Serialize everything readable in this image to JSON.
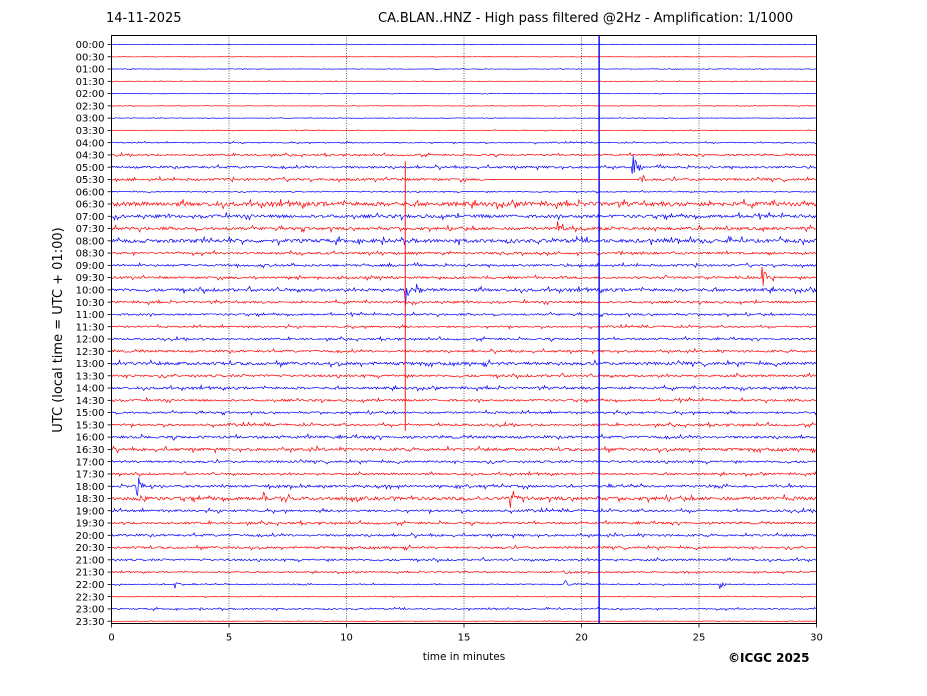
{
  "header": {
    "date": "14-11-2025",
    "title": "CA.BLAN..HNZ - High pass filtered @2Hz - Amplification: 1/1000"
  },
  "footer": {
    "copyright": "©ICGC 2025"
  },
  "chart_data": {
    "type": "line",
    "xlabel": "time in minutes",
    "ylabel": "UTC (local time = UTC + 01:00)",
    "xlim": [
      0,
      30
    ],
    "x_ticks": [
      0,
      5,
      10,
      15,
      20,
      25,
      30
    ],
    "grid": "vertical dotted lines at every 5 minutes",
    "row_colors": [
      "#0000ff",
      "#ff0000"
    ],
    "rows": [
      "00:00",
      "00:30",
      "01:00",
      "01:30",
      "02:00",
      "02:30",
      "03:00",
      "03:30",
      "04:00",
      "04:30",
      "05:00",
      "05:30",
      "06:00",
      "06:30",
      "07:00",
      "07:30",
      "08:00",
      "08:30",
      "09:00",
      "09:30",
      "10:00",
      "10:30",
      "11:00",
      "11:30",
      "12:00",
      "12:30",
      "13:00",
      "13:30",
      "14:00",
      "14:30",
      "15:00",
      "15:30",
      "16:00",
      "16:30",
      "17:00",
      "17:30",
      "18:00",
      "18:30",
      "19:00",
      "19:30",
      "20:00",
      "20:30",
      "21:00",
      "21:30",
      "22:00",
      "22:30",
      "23:00",
      "23:30"
    ],
    "row_noise_amplitude": [
      0.3,
      0.3,
      0.5,
      0.5,
      0.5,
      0.5,
      0.5,
      0.6,
      1.0,
      1.6,
      2.0,
      2.2,
      1.0,
      4.0,
      3.0,
      2.6,
      3.4,
      2.0,
      2.0,
      2.0,
      2.8,
      2.0,
      1.8,
      1.6,
      1.8,
      2.0,
      2.8,
      2.2,
      2.2,
      2.0,
      1.8,
      2.0,
      2.4,
      2.6,
      2.0,
      1.8,
      2.2,
      3.2,
      2.0,
      2.0,
      2.0,
      2.0,
      1.8,
      1.2,
      1.0,
      0.7,
      1.2,
      0.5
    ],
    "events": [
      {
        "row": "05:00",
        "minute": 22.2,
        "amplitude": 14
      },
      {
        "row": "05:30",
        "minute": 22.4,
        "amplitude": 12
      },
      {
        "row": "07:30",
        "minute": 19.0,
        "amplitude": 8
      },
      {
        "row": "09:30",
        "minute": 27.7,
        "amplitude": 16
      },
      {
        "row": "10:00",
        "minute": 12.5,
        "amplitude": 18
      },
      {
        "row": "10:00",
        "minute": 13.0,
        "amplitude": 6
      },
      {
        "row": "18:00",
        "minute": 1.1,
        "amplitude": 12
      },
      {
        "row": "18:30",
        "minute": 1.2,
        "amplitude": 8
      },
      {
        "row": "18:30",
        "minute": 6.5,
        "amplitude": 9
      },
      {
        "row": "18:30",
        "minute": 17.0,
        "amplitude": 14
      },
      {
        "row": "21:30",
        "minute": 19.2,
        "amplitude": 9
      },
      {
        "row": "22:00",
        "minute": 2.7,
        "amplitude": 5
      },
      {
        "row": "22:00",
        "minute": 19.3,
        "amplitude": 6
      },
      {
        "row": "22:00",
        "minute": 25.9,
        "amplitude": 6
      }
    ],
    "vertical_markers": [
      {
        "minute": 12.5,
        "from_row": "05:00",
        "to_row": "15:30",
        "color": "#ff0000"
      },
      {
        "minute": 20.75,
        "from_row": "00:00",
        "to_row": "23:30",
        "color": "#0000ff"
      }
    ],
    "flat_segment": {
      "row": "05:30",
      "from_minute": 16.0,
      "to_minute": 22.4
    }
  }
}
